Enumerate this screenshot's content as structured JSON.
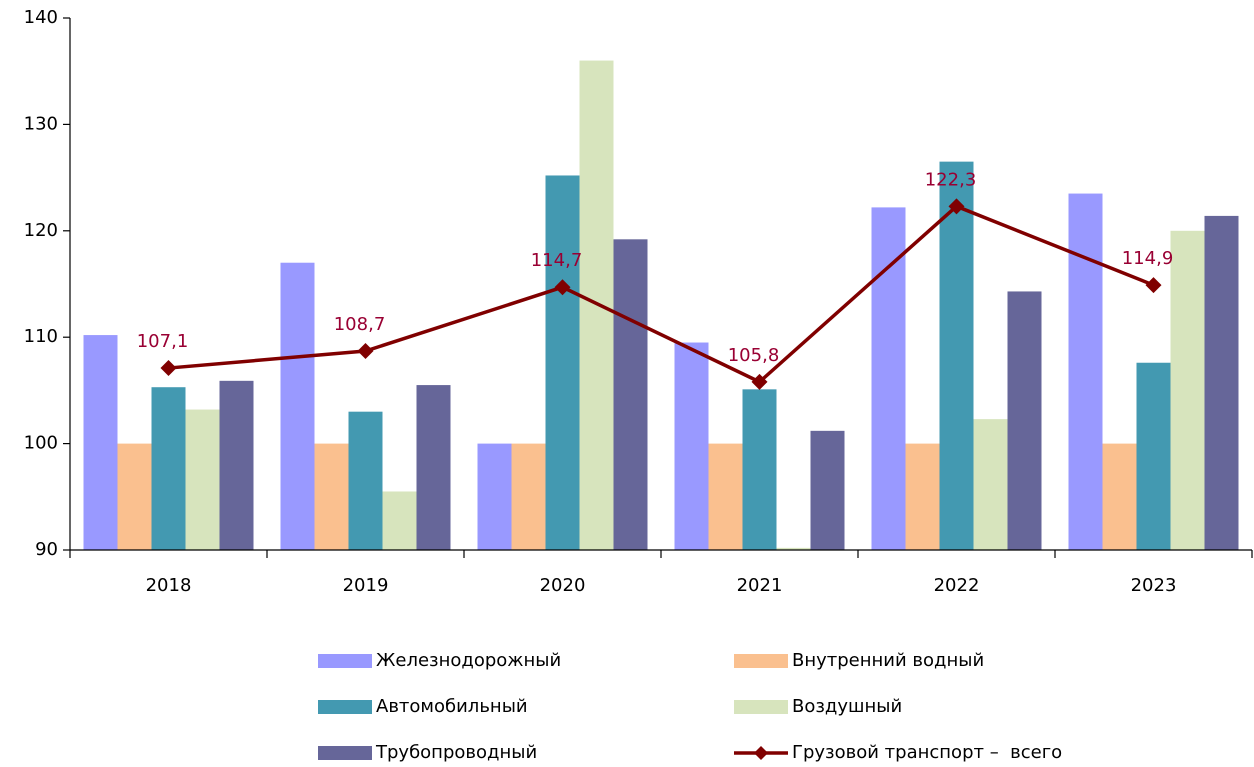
{
  "chart_data": {
    "type": "bar",
    "categories": [
      "2018",
      "2019",
      "2020",
      "2021",
      "2022",
      "2023"
    ],
    "ylim": [
      90,
      140
    ],
    "yticks": [
      90,
      100,
      110,
      120,
      130,
      140
    ],
    "series": [
      {
        "name": "Железнодорожный",
        "color": "#9999ff",
        "values": [
          110.2,
          117.0,
          100.0,
          109.5,
          122.2,
          123.5
        ]
      },
      {
        "name": "Внутренний водный",
        "color": "#fac08f",
        "values": [
          100.0,
          100.0,
          100.0,
          100.0,
          100.0,
          100.0
        ]
      },
      {
        "name": "Автомобильный",
        "color": "#4399b1",
        "values": [
          105.3,
          103.0,
          125.2,
          105.1,
          126.5,
          107.6
        ]
      },
      {
        "name": "Воздушный",
        "color": "#d7e4bd",
        "values": [
          103.2,
          95.5,
          136.0,
          90.2,
          102.3,
          120.0
        ]
      },
      {
        "name": "Трубопроводный",
        "color": "#666699",
        "values": [
          105.9,
          105.5,
          119.2,
          101.2,
          114.3,
          121.4
        ]
      },
      {
        "name": "Грузовой транспорт –  всего",
        "type": "line",
        "color": "#800000",
        "label_color": "#990033",
        "values": [
          107.1,
          108.7,
          114.7,
          105.8,
          122.3,
          114.9
        ],
        "value_labels": [
          "107,1",
          "108,7",
          "114,7",
          "105,8",
          "122,3",
          "114,9"
        ]
      }
    ]
  }
}
